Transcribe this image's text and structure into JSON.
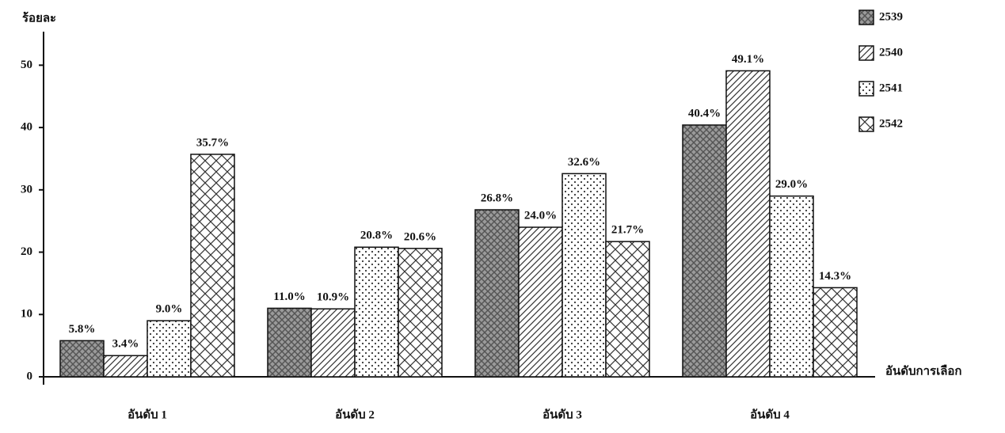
{
  "chart_data": {
    "type": "bar",
    "ylabel": "ร้อยละ",
    "xlabel": "อันดับการเลือก",
    "categories": [
      "อันดับ 1",
      "อันดับ 2",
      "อันดับ 3",
      "อันดับ 4"
    ],
    "series": [
      {
        "name": "2539",
        "color": "#555555",
        "values": [
          5.8,
          11.0,
          26.8,
          40.4
        ],
        "value_labels": [
          "5.8%",
          "11.0%",
          "26.8%",
          "40.4%"
        ]
      },
      {
        "name": "2540",
        "color": "#333333",
        "values": [
          3.4,
          10.9,
          24.0,
          49.1
        ],
        "value_labels": [
          "3.4%",
          "10.9%",
          "24.0%",
          "49.1%"
        ]
      },
      {
        "name": "2541",
        "color": "#333333",
        "values": [
          9.0,
          20.8,
          32.6,
          29.0
        ],
        "value_labels": [
          "9.0%",
          "20.8%",
          "32.6%",
          "29.0%"
        ]
      },
      {
        "name": "2542",
        "color": "#333333",
        "values": [
          35.7,
          20.6,
          21.7,
          14.3
        ],
        "value_labels": [
          "35.7%",
          "20.6%",
          "21.7%",
          "14.3%"
        ]
      }
    ],
    "ylim": [
      0,
      55
    ],
    "yticks": [
      0,
      10,
      20,
      30,
      40,
      50
    ],
    "legend": "upper right"
  }
}
